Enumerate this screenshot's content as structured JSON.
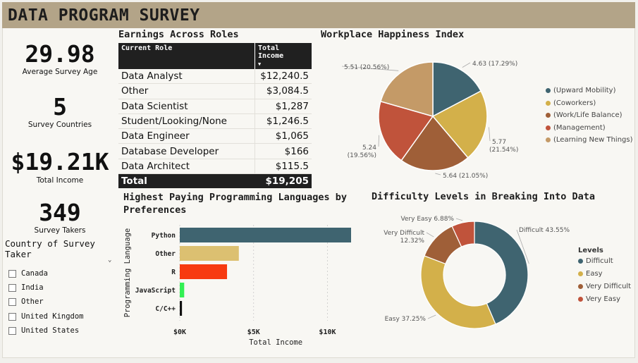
{
  "title": "DATA PROGRAM SURVEY",
  "kpis": {
    "avg_age": {
      "value": "29.98",
      "label": "Average Survey Age"
    },
    "countries": {
      "value": "5",
      "label": "Survey Countries"
    },
    "income": {
      "value": "$19.21K",
      "label": "Total Income"
    },
    "takers": {
      "value": "349",
      "label": "Survey Takers"
    }
  },
  "slicer": {
    "title": "Country of Survey Taker",
    "items": [
      "Canada",
      "India",
      "Other",
      "United Kingdom",
      "United States"
    ]
  },
  "earnings": {
    "title": "Earnings Across Roles",
    "columns": [
      "Current Role",
      "Total Income"
    ],
    "rows": [
      {
        "role": "Data Analyst",
        "income": "$12,240.5"
      },
      {
        "role": "Other",
        "income": "$3,084.5"
      },
      {
        "role": "Data Scientist",
        "income": "$1,287"
      },
      {
        "role": "Student/Looking/None",
        "income": "$1,246.5"
      },
      {
        "role": "Data Engineer",
        "income": "$1,065"
      },
      {
        "role": "Database Developer",
        "income": "$166"
      },
      {
        "role": "Data Architect",
        "income": "$115.5"
      }
    ],
    "total_label": "Total",
    "total_value": "$19,205"
  },
  "chart_data": [
    {
      "type": "pie",
      "title": "Workplace Happiness Index",
      "categories": [
        "(Upward Mobility)",
        "(Coworkers)",
        "(Work/Life Balance)",
        "(Management)",
        "(Learning New Things)"
      ],
      "values": [
        4.63,
        5.77,
        5.64,
        5.24,
        5.51
      ],
      "data_labels": [
        "4.63 (17.29%)",
        "5.77 (21.54%)",
        "5.64 (21.05%)",
        "5.24 (19.56%)",
        "5.51 (20.56%)"
      ],
      "colors": [
        "#3f6470",
        "#d3b04a",
        "#9f5f38",
        "#c0533b",
        "#c49a67"
      ],
      "legend": "right"
    },
    {
      "type": "bar",
      "title": "Highest Paying Programming Languages by Preferences",
      "categories": [
        "Python",
        "Other",
        "R",
        "JavaScript",
        "C/C++"
      ],
      "values": [
        11600,
        4000,
        3200,
        300,
        150
      ],
      "colors": [
        "#3f6470",
        "#dcc071",
        "#f73a10",
        "#33f054",
        "#111111"
      ],
      "xlabel": "Total Income",
      "ylabel": "Programming Language",
      "xticks": [
        "$0K",
        "$5K",
        "$10K"
      ],
      "xlim": [
        0,
        11600
      ],
      "grid": true
    },
    {
      "type": "pie",
      "title": "Difficulty Levels in Breaking Into Data",
      "categories": [
        "Difficult",
        "Easy",
        "Very Difficult",
        "Very Easy"
      ],
      "values": [
        43.55,
        37.25,
        12.32,
        6.88
      ],
      "data_labels": [
        "Difficult 43.55%",
        "Easy 37.25%",
        "Very Difficult 12.32%",
        "Very Easy 6.88%"
      ],
      "colors": [
        "#3f6470",
        "#d3b04a",
        "#9f5f38",
        "#c0533b"
      ],
      "legend_title": "Levels",
      "legend": "right"
    }
  ]
}
